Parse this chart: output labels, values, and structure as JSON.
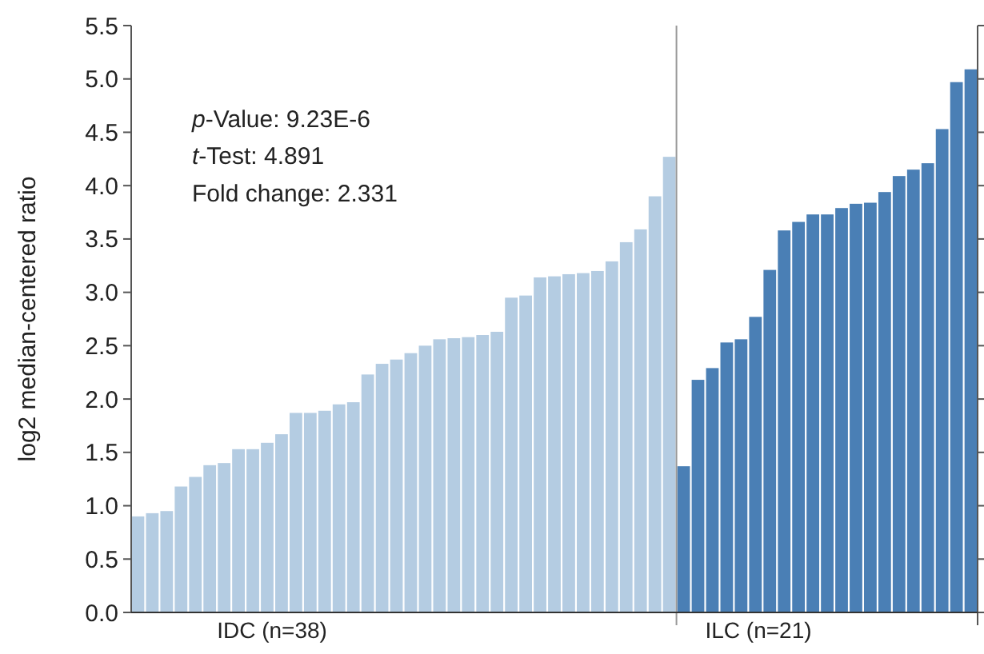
{
  "chart_data": {
    "type": "bar",
    "ylabel": "log2 median-centered ratio",
    "categories": [
      null,
      null,
      null,
      null,
      null,
      null,
      null,
      null,
      null,
      null,
      null,
      null,
      null,
      null,
      null,
      null,
      null,
      null,
      null,
      null,
      null,
      null,
      null,
      null,
      null,
      null,
      null,
      null,
      null,
      null,
      null,
      null,
      null,
      null,
      null,
      null,
      null,
      null,
      null,
      null,
      null,
      null,
      null,
      null,
      null,
      null,
      null,
      null,
      null,
      null,
      null,
      null,
      null,
      null,
      null,
      null,
      null,
      null,
      null
    ],
    "series": [
      {
        "name": "IDC (n=38)",
        "color": "#b4cce2",
        "values": [
          0.9,
          0.93,
          0.95,
          1.18,
          1.27,
          1.38,
          1.4,
          1.53,
          1.53,
          1.59,
          1.67,
          1.87,
          1.87,
          1.89,
          1.95,
          1.97,
          2.23,
          2.33,
          2.37,
          2.43,
          2.5,
          2.56,
          2.57,
          2.58,
          2.6,
          2.63,
          2.95,
          2.97,
          3.14,
          3.15,
          3.17,
          3.18,
          3.2,
          3.29,
          3.47,
          3.59,
          3.9,
          4.27,
          null,
          null,
          null,
          null,
          null,
          null,
          null,
          null,
          null,
          null,
          null,
          null,
          null,
          null,
          null,
          null,
          null,
          null,
          null,
          null,
          null
        ]
      },
      {
        "name": "ILC (n=21)",
        "color": "#4a7fb5",
        "values": [
          null,
          null,
          null,
          null,
          null,
          null,
          null,
          null,
          null,
          null,
          null,
          null,
          null,
          null,
          null,
          null,
          null,
          null,
          null,
          null,
          null,
          null,
          null,
          null,
          null,
          null,
          null,
          null,
          null,
          null,
          null,
          null,
          null,
          null,
          null,
          null,
          null,
          null,
          1.37,
          2.18,
          2.29,
          2.53,
          2.56,
          2.77,
          3.21,
          3.58,
          3.66,
          3.73,
          3.73,
          3.79,
          3.83,
          3.84,
          3.94,
          4.09,
          4.15,
          4.21,
          4.53,
          4.97,
          5.09
        ]
      }
    ],
    "ylim": [
      0,
      5.5
    ],
    "yticks": [
      {
        "value": 0,
        "label": "0.0"
      },
      {
        "value": 0.5,
        "label": "0.5"
      },
      {
        "value": 1,
        "label": "1.0"
      },
      {
        "value": 1.5,
        "label": "1.5"
      },
      {
        "value": 2,
        "label": "2.0"
      },
      {
        "value": 2.5,
        "label": "2.5"
      },
      {
        "value": 3,
        "label": "3.0"
      },
      {
        "value": 3.5,
        "label": "3.5"
      },
      {
        "value": 4,
        "label": "4.0"
      },
      {
        "value": 4.5,
        "label": "4.5"
      },
      {
        "value": 5,
        "label": "5.0"
      },
      {
        "value": 5.5,
        "label": "5.5"
      }
    ],
    "annotations": [
      "p-Value: 9.23E-6",
      "t-Test: 4.891",
      "Fold change: 2.331"
    ],
    "grid": false
  }
}
